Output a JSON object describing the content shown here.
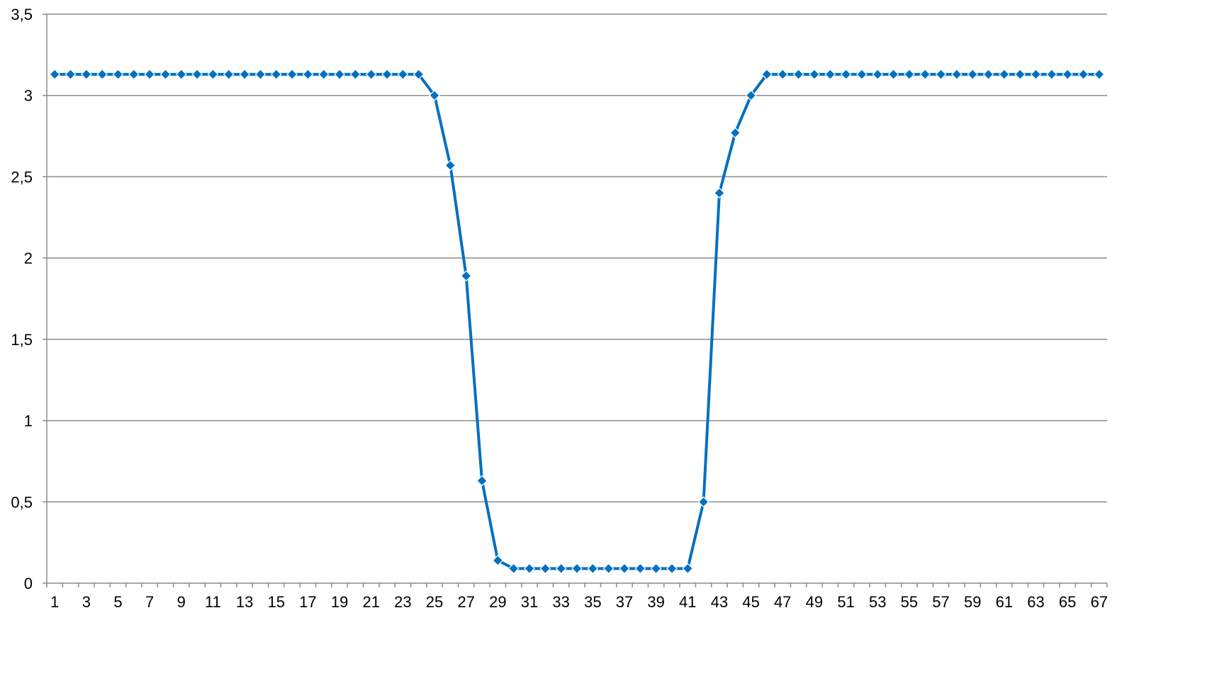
{
  "chart_data": {
    "type": "line",
    "title": "",
    "xlabel": "",
    "ylabel": "",
    "ylim": [
      0,
      3.5
    ],
    "y_ticks": [
      "0",
      "0,5",
      "1",
      "1,5",
      "2",
      "2,5",
      "3",
      "3,5"
    ],
    "y_tick_values": [
      0,
      0.5,
      1,
      1.5,
      2,
      2.5,
      3,
      3.5
    ],
    "categories": [
      "1",
      "2",
      "3",
      "4",
      "5",
      "6",
      "7",
      "8",
      "9",
      "10",
      "11",
      "12",
      "13",
      "14",
      "15",
      "16",
      "17",
      "18",
      "19",
      "20",
      "21",
      "22",
      "23",
      "24",
      "25",
      "26",
      "27",
      "28",
      "29",
      "30",
      "31",
      "32",
      "33",
      "34",
      "35",
      "36",
      "37",
      "38",
      "39",
      "40",
      "41",
      "42",
      "43",
      "44",
      "45",
      "46",
      "47",
      "48",
      "49",
      "50",
      "51",
      "52",
      "53",
      "54",
      "55",
      "56",
      "57",
      "58",
      "59",
      "60",
      "61",
      "62",
      "63",
      "64",
      "65",
      "66",
      "67"
    ],
    "x_tick_labels": [
      "1",
      "3",
      "5",
      "7",
      "9",
      "11",
      "13",
      "15",
      "17",
      "19",
      "21",
      "23",
      "25",
      "27",
      "29",
      "31",
      "33",
      "35",
      "37",
      "39",
      "41",
      "43",
      "45",
      "47",
      "49",
      "51",
      "53",
      "55",
      "57",
      "59",
      "61",
      "63",
      "65",
      "67"
    ],
    "grid": true,
    "legend": "none",
    "series": [
      {
        "color": "#0070c0",
        "marker": "diamond",
        "values": [
          3.13,
          3.13,
          3.13,
          3.13,
          3.13,
          3.13,
          3.13,
          3.13,
          3.13,
          3.13,
          3.13,
          3.13,
          3.13,
          3.13,
          3.13,
          3.13,
          3.13,
          3.13,
          3.13,
          3.13,
          3.13,
          3.13,
          3.13,
          3.13,
          3.0,
          2.57,
          1.89,
          0.63,
          0.14,
          0.09,
          0.09,
          0.09,
          0.09,
          0.09,
          0.09,
          0.09,
          0.09,
          0.09,
          0.09,
          0.09,
          0.09,
          0.5,
          2.4,
          2.77,
          3.0,
          3.13,
          3.13,
          3.13,
          3.13,
          3.13,
          3.13,
          3.13,
          3.13,
          3.13,
          3.13,
          3.13,
          3.13,
          3.13,
          3.13,
          3.13,
          3.13,
          3.13,
          3.13,
          3.13,
          3.13,
          3.13,
          3.13
        ]
      }
    ]
  }
}
